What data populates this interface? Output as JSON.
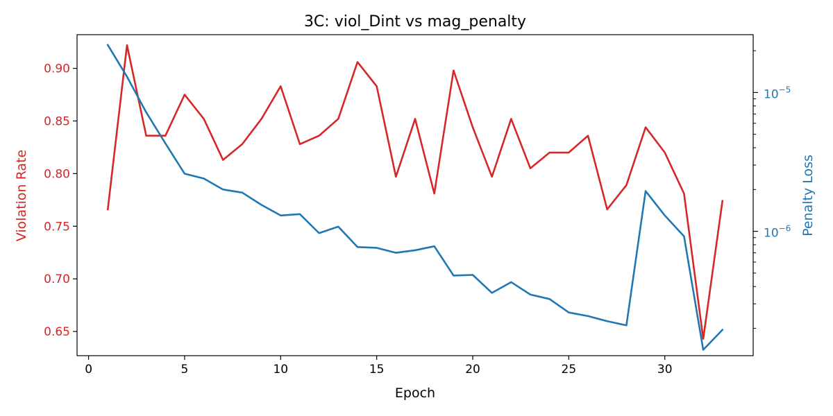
{
  "chart_data": {
    "type": "line",
    "title": "3C: viol_Dint vs mag_penalty",
    "xlabel": "Epoch",
    "ylabel_left": "Violation Rate",
    "ylabel_right": "Penalty Loss",
    "xlim": [
      -0.6,
      34.6
    ],
    "ylim_left": [
      0.627,
      0.932
    ],
    "ylim_right": [
      1.27e-07,
      2.61e-05
    ],
    "right_scale": "log",
    "x_ticks": [
      0,
      5,
      10,
      15,
      20,
      25,
      30
    ],
    "x_tick_labels": [
      "0",
      "5",
      "10",
      "15",
      "20",
      "25",
      "30"
    ],
    "left_ticks": [
      0.65,
      0.7,
      0.75,
      0.8,
      0.85,
      0.9
    ],
    "left_tick_labels": [
      "0.65",
      "0.70",
      "0.75",
      "0.80",
      "0.85",
      "0.90"
    ],
    "right_major_ticks": [
      1e-06,
      1e-05
    ],
    "right_tick_labels": [
      {
        "base": "10",
        "exp": "−6"
      },
      {
        "base": "10",
        "exp": "−5"
      }
    ],
    "grid": false,
    "x": [
      1,
      2,
      3,
      4,
      5,
      6,
      7,
      8,
      9,
      10,
      11,
      12,
      13,
      14,
      15,
      16,
      17,
      18,
      19,
      20,
      21,
      22,
      23,
      24,
      25,
      26,
      27,
      28,
      29,
      30,
      31,
      32,
      33
    ],
    "series": [
      {
        "axis": "left",
        "color": "#d62728",
        "values": [
          0.766,
          0.922,
          0.836,
          0.836,
          0.875,
          0.852,
          0.813,
          0.828,
          0.852,
          0.883,
          0.828,
          0.836,
          0.852,
          0.906,
          0.883,
          0.797,
          0.852,
          0.781,
          0.898,
          0.844,
          0.797,
          0.852,
          0.805,
          0.82,
          0.82,
          0.836,
          0.766,
          0.789,
          0.844,
          0.82,
          0.781,
          0.643,
          0.774
        ]
      },
      {
        "axis": "right",
        "color": "#1f77b4",
        "values": [
          2.2e-05,
          1.3e-05,
          7.2e-06,
          4.3e-06,
          2.6e-06,
          2.4e-06,
          2e-06,
          1.9e-06,
          1.55e-06,
          1.3e-06,
          1.33e-06,
          9.7e-07,
          1.08e-06,
          7.7e-07,
          7.6e-07,
          7e-07,
          7.3e-07,
          7.8e-07,
          4.8e-07,
          4.85e-07,
          3.6e-07,
          4.3e-07,
          3.5e-07,
          3.25e-07,
          2.6e-07,
          2.45e-07,
          2.25e-07,
          2.1e-07,
          1.95e-06,
          1.3e-06,
          9.2e-07,
          1.4e-07,
          1.95e-07
        ]
      }
    ]
  }
}
